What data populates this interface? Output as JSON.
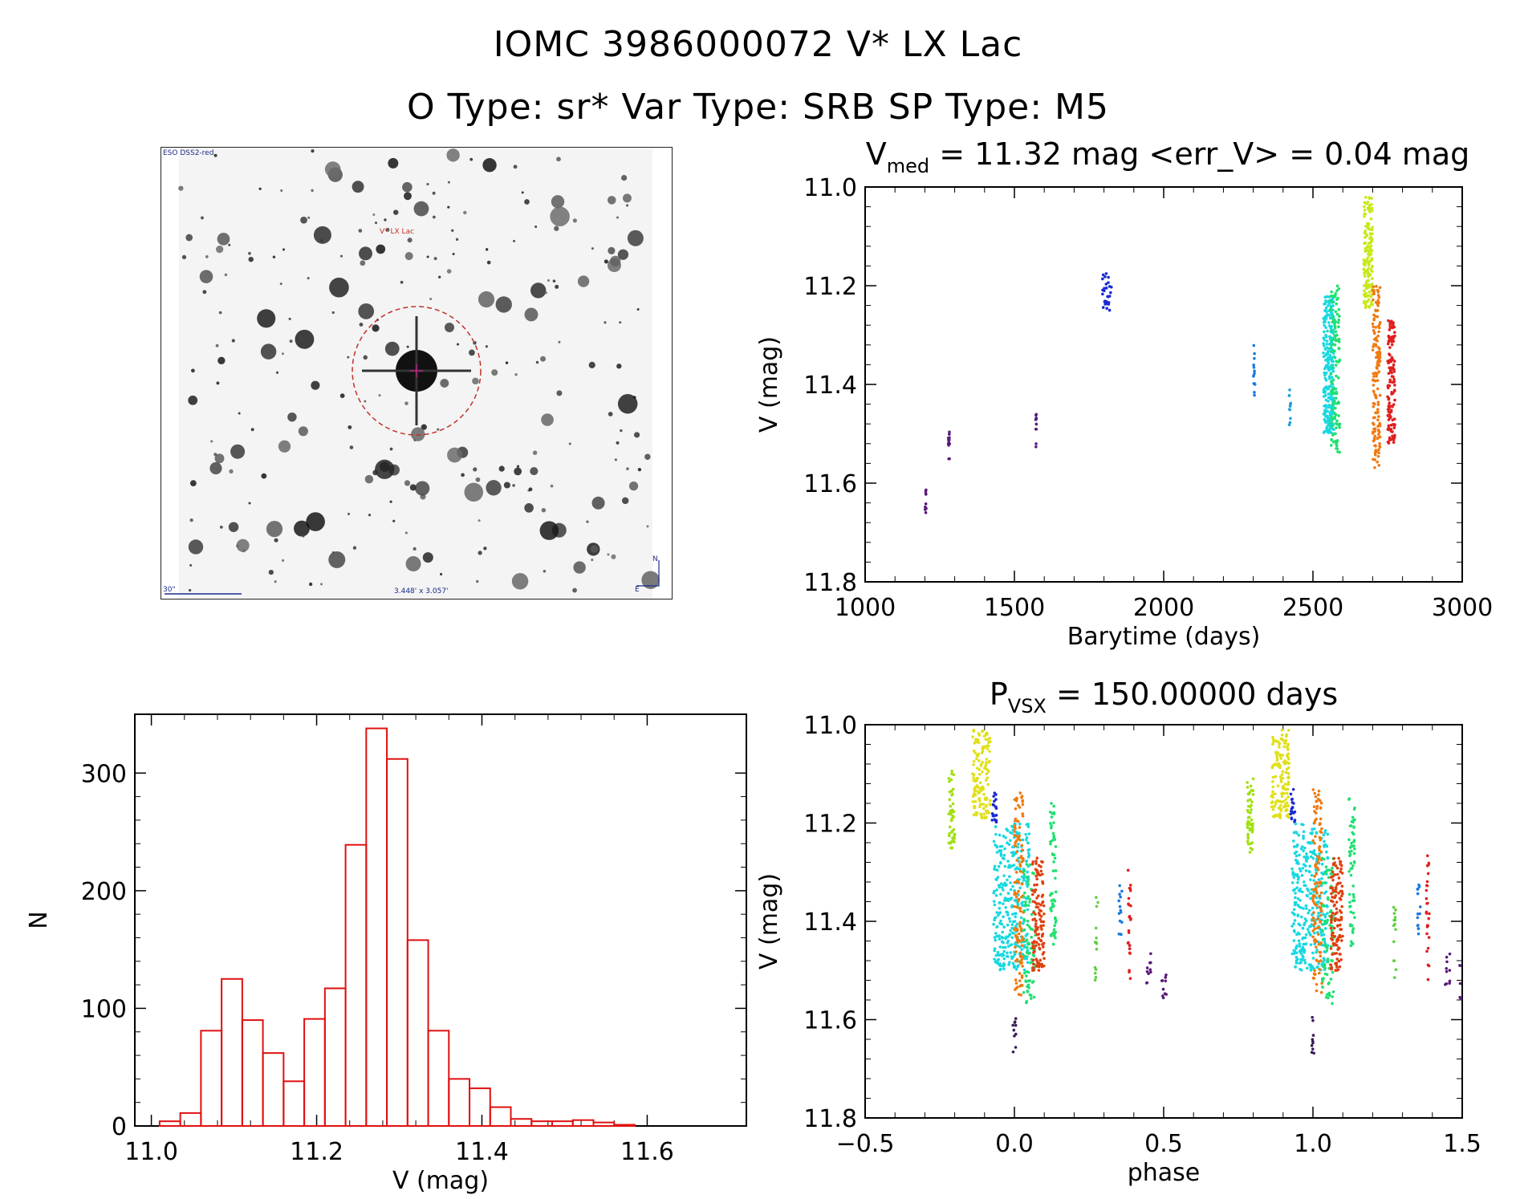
{
  "title": "IOMC 3986000072   V* LX Lac",
  "subtitle": "O Type: sr*  Var Type: SRB  SP Type: M5",
  "finder_chart": {
    "survey_label": "ESO DSS2-red",
    "target_label": "V* LX Lac",
    "scale_label": "30\"",
    "fov_label": "3.448' x 3.057'",
    "compass_n": "N",
    "compass_e": "E"
  },
  "colors": {
    "histogram": "#e01010",
    "axis": "#000000"
  },
  "chart_data": [
    {
      "id": "light-curve",
      "type": "scatter",
      "title_main": "V",
      "title_sub": "med",
      "title_rest": " = 11.32 mag <err_V> = 0.04 mag",
      "xlabel": "Barytime (days)",
      "ylabel": "V (mag)",
      "xlim": [
        1000,
        3000
      ],
      "ylim": [
        11.8,
        11.0
      ],
      "xticks": [
        1000,
        1500,
        2000,
        2500,
        3000
      ],
      "xtick_labels": [
        "1000",
        "1500",
        "2000",
        "2500",
        "3000"
      ],
      "yticks": [
        11.0,
        11.2,
        11.4,
        11.6,
        11.8
      ],
      "ytick_labels": [
        "11.0",
        "11.2",
        "11.4",
        "11.6",
        "11.8"
      ],
      "series": [
        {
          "name": "g1",
          "color": "#5a1a7a",
          "x_range": [
            1200,
            1205
          ],
          "y_range": [
            11.6,
            11.66
          ],
          "count": 10
        },
        {
          "name": "g2",
          "color": "#5a1a7a",
          "x_range": [
            1278,
            1283
          ],
          "y_range": [
            11.48,
            11.56
          ],
          "count": 12
        },
        {
          "name": "g3",
          "color": "#5a1a7a",
          "x_range": [
            1570,
            1575
          ],
          "y_range": [
            11.46,
            11.53
          ],
          "count": 10
        },
        {
          "name": "g4",
          "color": "#1a2ad0",
          "x_range": [
            1795,
            1825
          ],
          "y_range": [
            11.15,
            11.25
          ],
          "count": 28
        },
        {
          "name": "g5",
          "color": "#1a7ae0",
          "x_range": [
            2300,
            2306
          ],
          "y_range": [
            11.32,
            11.43
          ],
          "count": 14
        },
        {
          "name": "g6",
          "color": "#20a0d8",
          "x_range": [
            2420,
            2426
          ],
          "y_range": [
            11.41,
            11.49
          ],
          "count": 12
        },
        {
          "name": "g7",
          "color": "#18d8e0",
          "x_range": [
            2535,
            2570
          ],
          "y_range": [
            11.22,
            11.5
          ],
          "count": 260
        },
        {
          "name": "g8",
          "color": "#20e070",
          "x_range": [
            2560,
            2590
          ],
          "y_range": [
            11.2,
            11.55
          ],
          "count": 120
        },
        {
          "name": "g9",
          "color": "#c8e818",
          "x_range": [
            2670,
            2700
          ],
          "y_range": [
            11.02,
            11.25
          ],
          "count": 150
        },
        {
          "name": "g10",
          "color": "#f07a10",
          "x_range": [
            2700,
            2725
          ],
          "y_range": [
            11.2,
            11.57
          ],
          "count": 150
        },
        {
          "name": "g11",
          "color": "#e02020",
          "x_range": [
            2750,
            2775
          ],
          "y_range": [
            11.27,
            11.52
          ],
          "count": 130
        }
      ]
    },
    {
      "id": "histogram",
      "type": "bar",
      "title": "",
      "xlabel": "V (mag)",
      "ylabel": "N",
      "xlim": [
        10.98,
        11.72
      ],
      "ylim": [
        0,
        350
      ],
      "xticks": [
        11.0,
        11.2,
        11.4,
        11.6
      ],
      "xtick_labels": [
        "11.0",
        "11.2",
        "11.4",
        "11.6"
      ],
      "yticks": [
        0,
        100,
        200,
        300
      ],
      "ytick_labels": [
        "0",
        "100",
        "200",
        "300"
      ],
      "bin_start": 11.01,
      "bin_width": 0.025,
      "values": [
        4,
        11,
        81,
        125,
        90,
        62,
        38,
        91,
        117,
        239,
        338,
        312,
        158,
        81,
        40,
        32,
        16,
        6,
        4,
        4,
        5,
        3,
        1
      ]
    },
    {
      "id": "phase-curve",
      "type": "scatter",
      "title_main": "P",
      "title_sub": "VSX",
      "title_rest": " = 150.00000 days",
      "xlabel": "phase",
      "ylabel": "V (mag)",
      "xlim": [
        -0.5,
        1.5
      ],
      "ylim": [
        11.8,
        11.0
      ],
      "xticks": [
        -0.5,
        0.0,
        0.5,
        1.0,
        1.5
      ],
      "xtick_labels": [
        "−0.5",
        "0.0",
        "0.5",
        "1.0",
        "1.5"
      ],
      "yticks": [
        11.0,
        11.2,
        11.4,
        11.6,
        11.8
      ],
      "ytick_labels": [
        "11.0",
        "11.2",
        "11.4",
        "11.6",
        "11.8"
      ],
      "series": [
        {
          "name": "p1",
          "color": "#a0e010",
          "x_range": [
            -0.22,
            -0.2
          ],
          "y_range": [
            11.09,
            11.26
          ],
          "count": 50
        },
        {
          "name": "p2",
          "color": "#e0e018",
          "x_range": [
            -0.14,
            -0.08
          ],
          "y_range": [
            11.01,
            11.19
          ],
          "count": 140
        },
        {
          "name": "p3",
          "color": "#1a2ad0",
          "x_range": [
            -0.075,
            -0.06
          ],
          "y_range": [
            11.13,
            11.2
          ],
          "count": 20
        },
        {
          "name": "p4",
          "color": "#18d8e0",
          "x_range": [
            -0.07,
            0.05
          ],
          "y_range": [
            11.2,
            11.5
          ],
          "count": 320
        },
        {
          "name": "p5",
          "color": "#f07a10",
          "x_range": [
            0.0,
            0.03
          ],
          "y_range": [
            11.13,
            11.55
          ],
          "count": 120
        },
        {
          "name": "p6",
          "color": "#20e070",
          "x_range": [
            0.03,
            0.07
          ],
          "y_range": [
            11.27,
            11.57
          ],
          "count": 80
        },
        {
          "name": "p7",
          "color": "#e04010",
          "x_range": [
            0.06,
            0.1
          ],
          "y_range": [
            11.27,
            11.5
          ],
          "count": 120
        },
        {
          "name": "p8",
          "color": "#20e070",
          "x_range": [
            0.12,
            0.14
          ],
          "y_range": [
            11.15,
            11.45
          ],
          "count": 60
        },
        {
          "name": "p9",
          "color": "#3a1a5a",
          "x_range": [
            -0.005,
            0.005
          ],
          "y_range": [
            11.59,
            11.67
          ],
          "count": 10
        },
        {
          "name": "p10",
          "color": "#60d040",
          "x_range": [
            0.27,
            0.28
          ],
          "y_range": [
            11.35,
            11.52
          ],
          "count": 14
        },
        {
          "name": "p11",
          "color": "#1a7ae0",
          "x_range": [
            0.35,
            0.36
          ],
          "y_range": [
            11.32,
            11.43
          ],
          "count": 14
        },
        {
          "name": "p12",
          "color": "#e02020",
          "x_range": [
            0.38,
            0.39
          ],
          "y_range": [
            11.26,
            11.52
          ],
          "count": 26
        },
        {
          "name": "p13",
          "color": "#5a1a7a",
          "x_range": [
            0.44,
            0.46
          ],
          "y_range": [
            11.46,
            11.53
          ],
          "count": 10
        },
        {
          "name": "p14",
          "color": "#5a1a7a",
          "x_range": [
            0.49,
            0.51
          ],
          "y_range": [
            11.48,
            11.56
          ],
          "count": 10
        }
      ],
      "phase_repeat": 1.0
    }
  ]
}
